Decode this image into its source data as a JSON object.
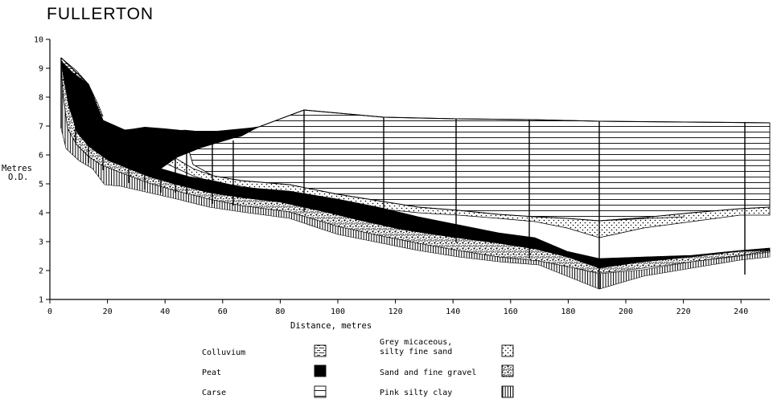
{
  "title": "FULLERTON",
  "diagram": {
    "x_axis": {
      "label": "Distance, metres",
      "range": [
        0,
        250
      ],
      "ticks": [
        0,
        20,
        40,
        60,
        80,
        100,
        120,
        140,
        160,
        180,
        200,
        220,
        240
      ]
    },
    "y_axis": {
      "label_line1": "Metres",
      "label_line2": "O.D.",
      "range": [
        1,
        10
      ],
      "ticks": [
        1,
        2,
        3,
        4,
        5,
        6,
        7,
        8,
        9,
        10
      ]
    },
    "legend": [
      {
        "label": "Colluvium",
        "pattern": "colluvium"
      },
      {
        "label": "Peat",
        "pattern": "peat"
      },
      {
        "label": "Carse",
        "pattern": "carse"
      },
      {
        "label_line1": "Grey micaceous,",
        "label_line2": "silty fine sand",
        "pattern": "sand"
      },
      {
        "label": "Sand and fine gravel",
        "pattern": "gravel"
      },
      {
        "label": "Pink silty clay",
        "pattern": "clay"
      }
    ],
    "boreholes_x": [
      5,
      10,
      14,
      19,
      28,
      35,
      40,
      44,
      48,
      56,
      64,
      89,
      116,
      141,
      166,
      191,
      241
    ],
    "colors": {
      "ink": "#000000",
      "paper": "#ffffff"
    }
  }
}
